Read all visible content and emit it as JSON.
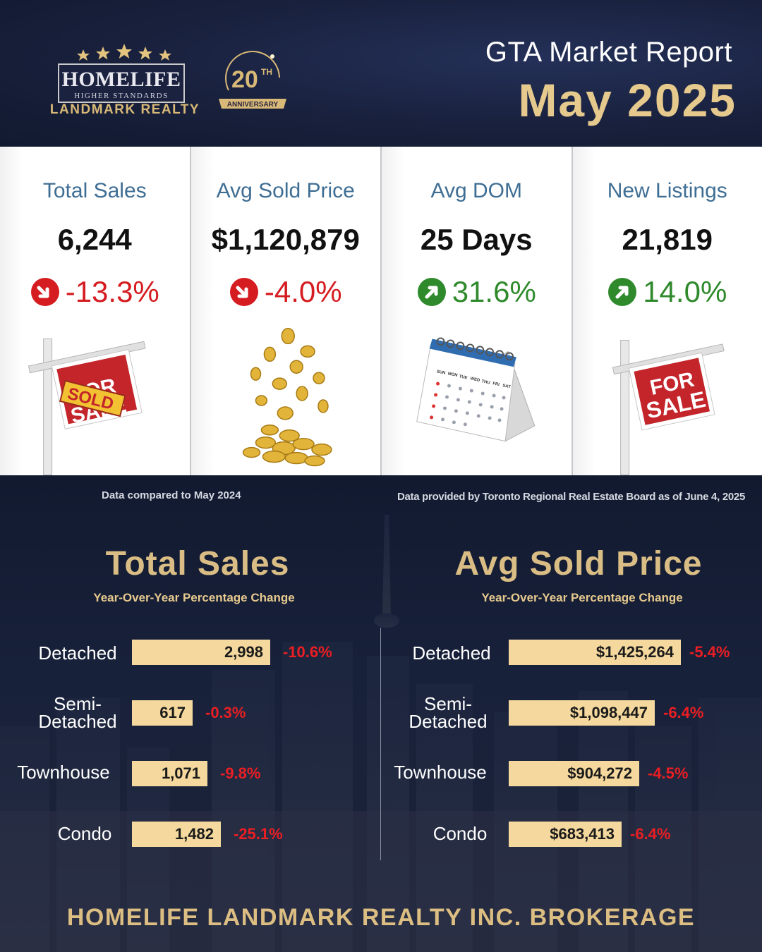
{
  "header": {
    "brand_name": "HOMELIFE",
    "brand_tagline": "HIGHER STANDARDS",
    "brand_sub": "LANDMARK REALTY",
    "anniversary_number": "20",
    "anniversary_suffix": "TH",
    "anniversary_label": "ANNIVERSARY",
    "report_title": "GTA Market Report",
    "report_date": "May 2025"
  },
  "cards": [
    {
      "title": "Total Sales",
      "value": "6,244",
      "change": "-13.3%",
      "direction": "down",
      "illustration": "sold-sign"
    },
    {
      "title": "Avg Sold Price",
      "value": "$1,120,879",
      "change": "-4.0%",
      "direction": "down",
      "illustration": "gold-coins"
    },
    {
      "title": "Avg DOM",
      "value": "25 Days",
      "change": "31.6%",
      "direction": "up",
      "illustration": "calendar"
    },
    {
      "title": "New Listings",
      "value": "21,819",
      "change": "14.0%",
      "direction": "up",
      "illustration": "for-sale-sign"
    }
  ],
  "illustration_text": {
    "for": "FOR",
    "sale": "SALE",
    "sold": "SOLD",
    "weekdays": [
      "SUN",
      "MON",
      "TUE",
      "WED",
      "THU",
      "FRI",
      "SAT"
    ]
  },
  "notes": {
    "compared": "Data compared to May 2024",
    "source": "Data provided by Toronto Regional Real Estate Board as of  June 4, 2025"
  },
  "total_sales": {
    "title": "Total Sales",
    "subtitle": "Year-Over-Year Percentage Change",
    "rows": [
      {
        "label": "Detached",
        "value": 2998,
        "display": "2,998",
        "change": "-10.6%"
      },
      {
        "label": "Semi-\nDetached",
        "value": 617,
        "display": "617",
        "change": "-0.3%"
      },
      {
        "label": "Townhouse",
        "value": 1071,
        "display": "1,071",
        "change": "-9.8%"
      },
      {
        "label": "Condo",
        "value": 1482,
        "display": "1,482",
        "change": "-25.1%"
      }
    ]
  },
  "avg_price": {
    "title": "Avg Sold Price",
    "subtitle": "Year-Over-Year Percentage Change",
    "rows": [
      {
        "label": "Detached",
        "value": 1425264,
        "display": "$1,425,264",
        "change": "-5.4%"
      },
      {
        "label": "Semi-\nDetached",
        "value": 1098447,
        "display": "$1,098,447",
        "change": "-6.4%"
      },
      {
        "label": "Townhouse",
        "value": 904272,
        "display": "$904,272",
        "change": "-4.5%"
      },
      {
        "label": "Condo",
        "value": 683413,
        "display": "$683,413",
        "change": "-6.4%"
      }
    ]
  },
  "footer": "HOMELIFE LANDMARK REALTY INC. BROKERAGE",
  "colors": {
    "gold": "#d9bd85",
    "bar": "#f4d89d",
    "down_red": "#d51c20",
    "up_green": "#2f8a2c",
    "title_blue": "#3f6e94"
  }
}
